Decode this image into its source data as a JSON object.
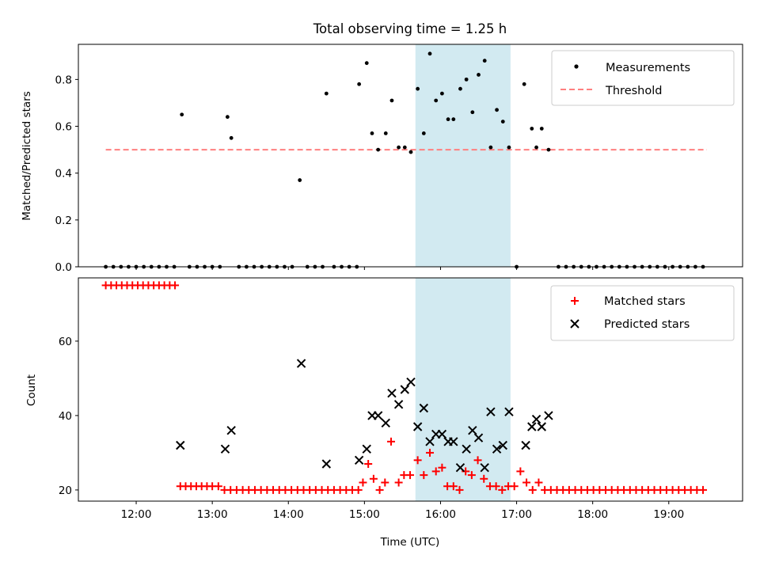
{
  "title": "Total observing time = 1.25 h",
  "chart_data": [
    {
      "type": "scatter",
      "ylabel": "Matched/Predicted stars",
      "xlim": [
        11.24,
        19.97
      ],
      "ylim": [
        0,
        0.95
      ],
      "yticks": [
        0.0,
        0.2,
        0.4,
        0.6,
        0.8
      ],
      "ytick_labels": [
        "0.0",
        "0.2",
        "0.4",
        "0.6",
        "0.8"
      ],
      "grid": false,
      "legend_position": "top-right",
      "highlight": {
        "x0": 15.67,
        "x1": 16.92,
        "color": "#add8e6"
      },
      "threshold": {
        "name": "Threshold",
        "y": 0.5,
        "x0": 11.6,
        "x1": 19.5,
        "color": "#ff7f7f"
      },
      "series": [
        {
          "name": "Measurements",
          "color": "#000000",
          "x": [
            11.6,
            11.7,
            11.8,
            11.9,
            12.0,
            12.1,
            12.2,
            12.3,
            12.4,
            12.5,
            12.6,
            12.7,
            12.8,
            12.9,
            13.0,
            13.1,
            13.2,
            13.25,
            13.35,
            13.45,
            13.55,
            13.65,
            13.75,
            13.85,
            13.95,
            14.05,
            14.15,
            14.25,
            14.35,
            14.45,
            14.5,
            14.6,
            14.7,
            14.8,
            14.9,
            14.93,
            15.03,
            15.1,
            15.18,
            15.28,
            15.36,
            15.45,
            15.53,
            15.61,
            15.7,
            15.78,
            15.86,
            15.94,
            16.02,
            16.1,
            16.17,
            16.26,
            16.34,
            16.42,
            16.5,
            16.58,
            16.66,
            16.74,
            16.82,
            16.9,
            17.0,
            17.1,
            17.2,
            17.26,
            17.33,
            17.42,
            17.55,
            17.65,
            17.75,
            17.85,
            17.95,
            18.05,
            18.15,
            18.25,
            18.35,
            18.45,
            18.55,
            18.65,
            18.75,
            18.85,
            18.95,
            19.05,
            19.15,
            19.25,
            19.35,
            19.45
          ],
          "y": [
            0,
            0,
            0,
            0,
            0,
            0,
            0,
            0,
            0,
            0,
            0.65,
            0,
            0,
            0,
            0,
            0,
            0.64,
            0.55,
            0,
            0,
            0,
            0,
            0,
            0,
            0,
            0,
            0.37,
            0,
            0,
            0,
            0.74,
            0,
            0,
            0,
            0,
            0.78,
            0.87,
            0.57,
            0.5,
            0.57,
            0.71,
            0.51,
            0.51,
            0.49,
            0.76,
            0.57,
            0.91,
            0.71,
            0.74,
            0.63,
            0.63,
            0.76,
            0.8,
            0.66,
            0.82,
            0.88,
            0.51,
            0.67,
            0.62,
            0.51,
            0,
            0.78,
            0.59,
            0.51,
            0.59,
            0.5,
            0,
            0,
            0,
            0,
            0,
            0,
            0,
            0,
            0,
            0,
            0,
            0,
            0,
            0,
            0,
            0,
            0,
            0,
            0,
            0
          ]
        }
      ]
    },
    {
      "type": "scatter",
      "xlabel": "Time (UTC)",
      "ylabel": "Count",
      "xlim": [
        11.24,
        19.97
      ],
      "ylim": [
        17,
        77
      ],
      "yticks": [
        20,
        40,
        60
      ],
      "ytick_labels": [
        "20",
        "40",
        "60"
      ],
      "xticks": [
        12,
        13,
        14,
        15,
        16,
        17,
        18,
        19
      ],
      "xtick_labels": [
        "12:00",
        "13:00",
        "14:00",
        "15:00",
        "16:00",
        "17:00",
        "18:00",
        "19:00"
      ],
      "grid": false,
      "legend_position": "top-right",
      "highlight": {
        "x0": 15.67,
        "x1": 16.92,
        "color": "#add8e6"
      },
      "series": [
        {
          "name": "Matched stars",
          "color": "#ff0000",
          "x": [
            11.6,
            11.67,
            11.74,
            11.81,
            11.88,
            11.95,
            12.02,
            12.09,
            12.16,
            12.23,
            12.3,
            12.37,
            12.44,
            12.51,
            12.58,
            12.65,
            12.72,
            12.79,
            12.86,
            12.93,
            13.0,
            13.08,
            13.16,
            13.24,
            13.32,
            13.4,
            13.48,
            13.56,
            13.64,
            13.72,
            13.8,
            13.88,
            13.96,
            14.04,
            14.12,
            14.2,
            14.28,
            14.36,
            14.44,
            14.52,
            14.6,
            14.68,
            14.76,
            14.84,
            14.92,
            14.98,
            15.05,
            15.12,
            15.2,
            15.27,
            15.35,
            15.45,
            15.52,
            15.6,
            15.7,
            15.78,
            15.86,
            15.94,
            16.02,
            16.09,
            16.17,
            16.25,
            16.33,
            16.41,
            16.49,
            16.57,
            16.65,
            16.73,
            16.81,
            16.89,
            16.97,
            17.05,
            17.13,
            17.21,
            17.29,
            17.37,
            17.45,
            17.53,
            17.61,
            17.69,
            17.77,
            17.85,
            17.93,
            18.01,
            18.09,
            18.17,
            18.25,
            18.33,
            18.41,
            18.49,
            18.57,
            18.65,
            18.73,
            18.81,
            18.89,
            18.97,
            19.05,
            19.13,
            19.21,
            19.29,
            19.37,
            19.45
          ],
          "y": [
            75,
            75,
            75,
            75,
            75,
            75,
            75,
            75,
            75,
            75,
            75,
            75,
            75,
            75,
            21,
            21,
            21,
            21,
            21,
            21,
            21,
            21,
            20,
            20,
            20,
            20,
            20,
            20,
            20,
            20,
            20,
            20,
            20,
            20,
            20,
            20,
            20,
            20,
            20,
            20,
            20,
            20,
            20,
            20,
            20,
            22,
            27,
            23,
            20,
            22,
            33,
            22,
            24,
            24,
            28,
            24,
            30,
            25,
            26,
            21,
            21,
            20,
            25,
            24,
            28,
            23,
            21,
            21,
            20,
            21,
            21,
            25,
            22,
            20,
            22,
            20,
            20,
            20,
            20,
            20,
            20,
            20,
            20,
            20,
            20,
            20,
            20,
            20,
            20,
            20,
            20,
            20,
            20,
            20,
            20,
            20,
            20,
            20,
            20,
            20,
            20,
            20
          ]
        },
        {
          "name": "Predicted stars",
          "color": "#000000",
          "x": [
            12.58,
            13.17,
            13.25,
            14.17,
            14.5,
            14.93,
            15.03,
            15.1,
            15.18,
            15.28,
            15.36,
            15.45,
            15.53,
            15.61,
            15.7,
            15.78,
            15.86,
            15.94,
            16.02,
            16.1,
            16.17,
            16.26,
            16.34,
            16.42,
            16.5,
            16.58,
            16.66,
            16.74,
            16.82,
            16.9,
            17.12,
            17.2,
            17.26,
            17.33,
            17.42
          ],
          "y": [
            32,
            31,
            36,
            54,
            27,
            28,
            31,
            40,
            40,
            38,
            46,
            43,
            47,
            49,
            37,
            42,
            33,
            35,
            35,
            33,
            33,
            26,
            31,
            36,
            34,
            26,
            41,
            31,
            32,
            41,
            32,
            37,
            39,
            37,
            40
          ]
        }
      ]
    }
  ]
}
